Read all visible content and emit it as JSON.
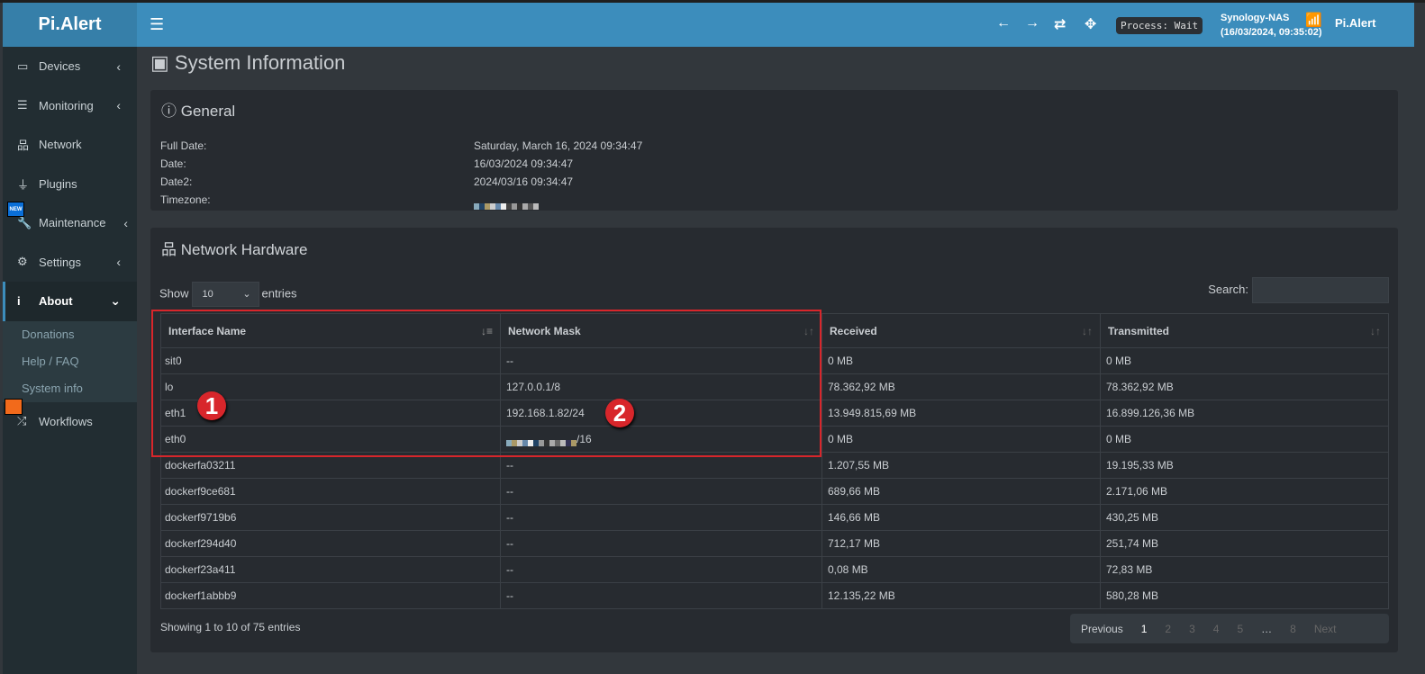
{
  "app": {
    "logo": "Pi.Alert",
    "brand": "Pi.Alert",
    "process": "Process: Wait",
    "host": "Synology-NAS",
    "host_time": "(16/03/2024, 09:35:02)"
  },
  "sidebar": {
    "items": [
      {
        "label": "Devices",
        "icon": "laptop-icon"
      },
      {
        "label": "Monitoring",
        "icon": "chart-icon"
      },
      {
        "label": "Network",
        "icon": "sitemap-icon"
      },
      {
        "label": "Plugins",
        "icon": "plug-icon"
      },
      {
        "label": "Maintenance",
        "icon": "wrench-icon",
        "badge": "NEW"
      },
      {
        "label": "Settings",
        "icon": "gear-icon"
      },
      {
        "label": "About",
        "icon": "info-icon"
      },
      {
        "label": "Workflows",
        "icon": "shuffle-icon"
      }
    ],
    "about_sub": [
      "Donations",
      "Help / FAQ",
      "System info"
    ]
  },
  "page": {
    "title": "System Information"
  },
  "general": {
    "title": "General",
    "rows": [
      {
        "label": "Full Date:",
        "value": "Saturday, March 16, 2024 09:34:47"
      },
      {
        "label": "Date:",
        "value": "16/03/2024 09:34:47"
      },
      {
        "label": "Date2:",
        "value": "2024/03/16 09:34:47"
      },
      {
        "label": "Timezone:",
        "value": ""
      }
    ]
  },
  "network": {
    "title": "Network Hardware",
    "show": "Show",
    "entries_value": "10",
    "entries": "entries",
    "search": "Search:",
    "columns": [
      "Interface Name",
      "Network Mask",
      "Received",
      "Transmitted"
    ],
    "rows": [
      [
        "sit0",
        "--",
        "0 MB",
        "0 MB"
      ],
      [
        "lo",
        "127.0.0.1/8",
        "78.362,92 MB",
        "78.362,92 MB"
      ],
      [
        "eth1",
        "192.168.1.82/24",
        "13.949.815,69 MB",
        "16.899.126,36 MB"
      ],
      [
        "eth0",
        "/16",
        "0 MB",
        "0 MB"
      ],
      [
        "dockerfa03211",
        "--",
        "1.207,55 MB",
        "19.195,33 MB"
      ],
      [
        "dockerf9ce681",
        "--",
        "689,66 MB",
        "2.171,06 MB"
      ],
      [
        "dockerf9719b6",
        "--",
        "146,66 MB",
        "430,25 MB"
      ],
      [
        "dockerf294d40",
        "--",
        "712,17 MB",
        "251,74 MB"
      ],
      [
        "dockerf23a411",
        "--",
        "0,08 MB",
        "72,83 MB"
      ],
      [
        "dockerf1abbb9",
        "--",
        "12.135,22 MB",
        "580,28 MB"
      ]
    ],
    "info": "Showing 1 to 10 of 75 entries",
    "pagination": {
      "previous": "Previous",
      "pages": [
        "1",
        "2",
        "3",
        "4",
        "5",
        "…",
        "8"
      ],
      "next": "Next"
    }
  },
  "annotations": [
    "1",
    "2"
  ],
  "colors": {
    "header": "#3c8dbc",
    "sidebar": "#222d32",
    "annotation": "#d8262b"
  }
}
